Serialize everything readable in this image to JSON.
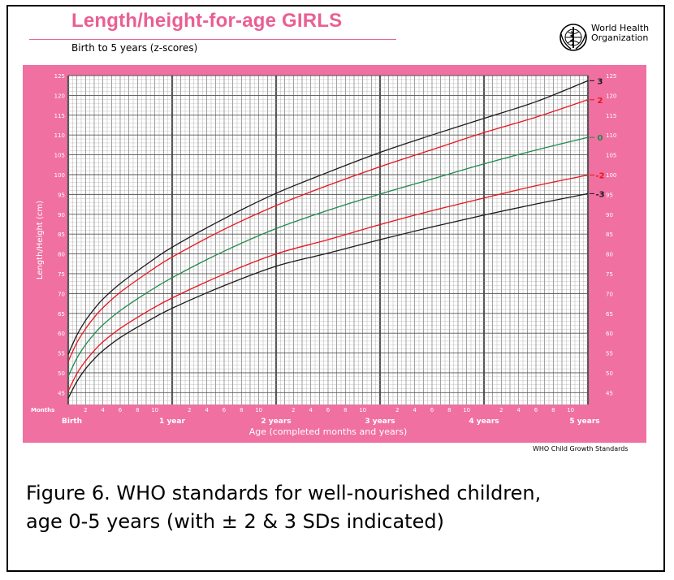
{
  "header": {
    "title": "Length/height-for-age GIRLS",
    "subtitle": "Birth to 5 years (z-scores)",
    "org_line1": "World Health",
    "org_line2": "Organization"
  },
  "footer": {
    "standards": "WHO Child Growth Standards"
  },
  "caption": {
    "line1": "Figure 6.  WHO standards for well-nourished children,",
    "line2": "age 0-5 years (with ± 2 & 3 SDs indicated)"
  },
  "colors": {
    "pink_frame": "#f070a1",
    "chart_bg": "#ffffff",
    "grid": "#777777",
    "plus_minus_3": "#1a1a1a",
    "plus_minus_2": "#e8141c",
    "median": "#1f8a4c",
    "title": "#ea5f93"
  },
  "chart_data": {
    "type": "line",
    "xlabel": "Age (completed months and years)",
    "ylabel": "Length/Height (cm)",
    "months_label": "Months",
    "xlim": [
      0,
      60
    ],
    "ylim": [
      42,
      125
    ],
    "y_ticks": [
      45,
      50,
      55,
      60,
      65,
      70,
      75,
      80,
      85,
      90,
      95,
      100,
      105,
      110,
      115,
      120,
      125
    ],
    "month_tick_labels": [
      "2",
      "4",
      "6",
      "8",
      "10"
    ],
    "year_labels": [
      {
        "month": 0,
        "label": "Birth"
      },
      {
        "month": 12,
        "label": "1 year"
      },
      {
        "month": 24,
        "label": "2 years"
      },
      {
        "month": 36,
        "label": "3 years"
      },
      {
        "month": 48,
        "label": "4 years"
      },
      {
        "month": 60,
        "label": "5 years"
      }
    ],
    "x": [
      0,
      1,
      2,
      3,
      4,
      6,
      9,
      12,
      18,
      24,
      30,
      36,
      42,
      48,
      54,
      60
    ],
    "series": [
      {
        "name": "3",
        "color": "#1a1a1a",
        "values": [
          54.7,
          59.5,
          63.2,
          66.1,
          68.6,
          72.5,
          77.3,
          81.7,
          88.9,
          95.3,
          100.6,
          105.6,
          110.0,
          114.2,
          118.4,
          123.7
        ]
      },
      {
        "name": "2",
        "color": "#e8141c",
        "values": [
          52.9,
          57.6,
          61.1,
          64.0,
          66.4,
          70.3,
          75.0,
          79.2,
          86.2,
          92.2,
          97.3,
          102.0,
          106.3,
          110.6,
          114.5,
          118.9
        ]
      },
      {
        "name": "0",
        "color": "#1f8a4c",
        "values": [
          49.1,
          53.7,
          57.1,
          59.8,
          62.1,
          65.7,
          70.1,
          74.0,
          80.7,
          86.4,
          91.0,
          95.1,
          98.9,
          102.7,
          106.2,
          109.4
        ]
      },
      {
        "name": "-2",
        "color": "#e8141c",
        "values": [
          45.4,
          49.8,
          53.0,
          55.6,
          57.8,
          61.2,
          65.3,
          68.9,
          74.9,
          80.0,
          83.6,
          87.4,
          90.9,
          94.1,
          97.2,
          99.9
        ]
      },
      {
        "name": "-3",
        "color": "#1a1a1a",
        "values": [
          43.6,
          47.8,
          51.0,
          53.5,
          55.6,
          58.9,
          62.8,
          66.3,
          72.0,
          76.9,
          80.2,
          83.6,
          86.8,
          89.8,
          92.6,
          95.2
        ]
      }
    ]
  }
}
